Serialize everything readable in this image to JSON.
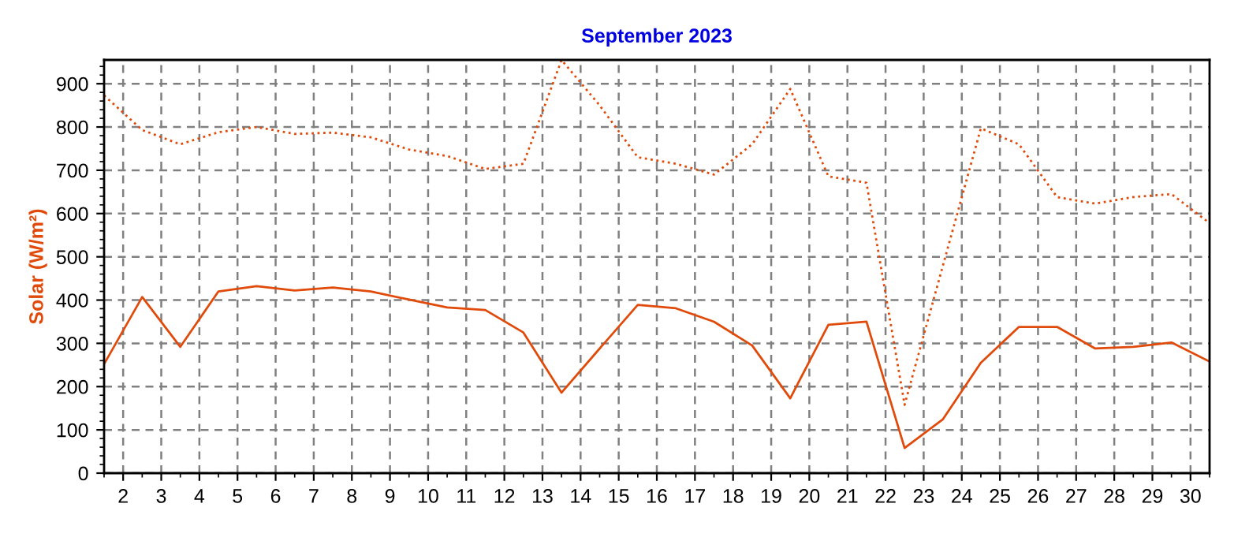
{
  "chart_data": {
    "type": "line",
    "title": "September 2023",
    "ylabel": "Solar (W/m²)",
    "x": [
      1.5,
      2.5,
      3.5,
      4.5,
      5.5,
      6.5,
      7.5,
      8.5,
      9.5,
      10.5,
      11.5,
      12.5,
      13.5,
      14.5,
      15.5,
      16.5,
      17.5,
      18.5,
      19.5,
      20.5,
      21.5,
      22.5,
      23.5,
      24.5,
      25.5,
      26.5,
      27.5,
      28.5,
      29.5,
      30.5
    ],
    "series": [
      {
        "color": "#e04a0a",
        "line_style": "solid",
        "values": [
          252,
          407,
          292,
          420,
          432,
          422,
          429,
          420,
          401,
          383,
          377,
          325,
          186,
          288,
          389,
          381,
          350,
          295,
          173,
          343,
          350,
          58,
          124,
          255,
          338,
          338,
          288,
          292,
          302,
          258
        ]
      },
      {
        "color": "#e04a0a",
        "line_style": "dotted",
        "values": [
          873,
          793,
          760,
          788,
          800,
          784,
          787,
          776,
          748,
          733,
          703,
          715,
          955,
          850,
          730,
          715,
          690,
          760,
          888,
          686,
          671,
          158,
          478,
          797,
          760,
          638,
          623,
          638,
          645,
          578
        ]
      }
    ],
    "xlim": [
      1.5,
      30.5
    ],
    "xticks": [
      2,
      3,
      4,
      5,
      6,
      7,
      8,
      9,
      10,
      11,
      12,
      13,
      14,
      15,
      16,
      17,
      18,
      19,
      20,
      21,
      22,
      23,
      24,
      25,
      26,
      27,
      28,
      29,
      30
    ],
    "ylim": [
      0,
      955
    ],
    "yticks": [
      0,
      100,
      200,
      300,
      400,
      500,
      600,
      700,
      800,
      900
    ],
    "grid": true,
    "marker": "none",
    "legend": false
  }
}
